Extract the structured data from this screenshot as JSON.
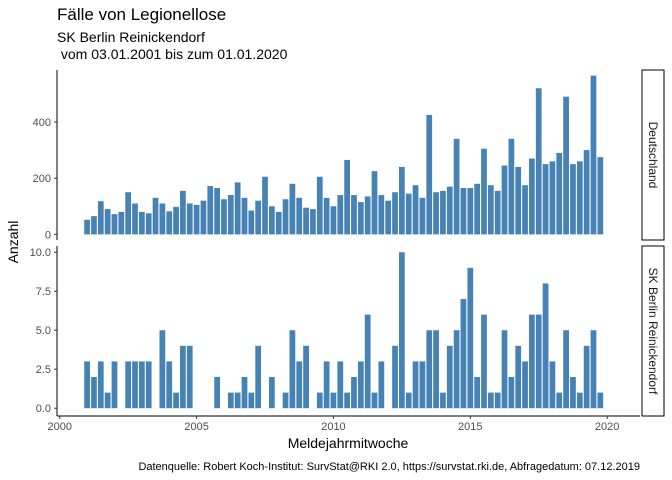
{
  "chart_data": {
    "type": "bar",
    "title": "Fälle von Legionellose",
    "subtitle_line1": "SK Berlin Reinickendorf",
    "subtitle_line2": " vom 03.01.2001 bis zum 01.01.2020",
    "xlabel": "Meldejahrmitwoche",
    "ylabel": "Anzahl",
    "caption": "Datenquelle: Robert Koch-Institut: SurvStat@RKI 2.0, https://survstat.rki.de, Abfragedatum: 07.12.2019",
    "x_ticks": [
      "2000",
      "2005",
      "2010",
      "2015",
      "2020"
    ],
    "xlim": [
      1999.9,
      2021.2
    ],
    "bar_color": "#4682b4",
    "grid": false,
    "bar_width_years": 0.21,
    "panels": [
      {
        "strip": "Deutschland",
        "ylim": [
          -20,
          585
        ],
        "y_ticks": [
          "0",
          "200",
          "400"
        ],
        "x": [
          2001.0,
          2001.25,
          2001.5,
          2001.75,
          2002.0,
          2002.25,
          2002.5,
          2002.75,
          2003.0,
          2003.25,
          2003.5,
          2003.75,
          2004.0,
          2004.25,
          2004.5,
          2004.75,
          2005.0,
          2005.25,
          2005.5,
          2005.75,
          2006.0,
          2006.25,
          2006.5,
          2006.75,
          2007.0,
          2007.25,
          2007.5,
          2007.75,
          2008.0,
          2008.25,
          2008.5,
          2008.75,
          2009.0,
          2009.25,
          2009.5,
          2009.75,
          2010.0,
          2010.25,
          2010.5,
          2010.75,
          2011.0,
          2011.25,
          2011.5,
          2011.75,
          2012.0,
          2012.25,
          2012.5,
          2012.75,
          2013.0,
          2013.25,
          2013.5,
          2013.75,
          2014.0,
          2014.25,
          2014.5,
          2014.75,
          2015.0,
          2015.25,
          2015.5,
          2015.75,
          2016.0,
          2016.25,
          2016.5,
          2016.75,
          2017.0,
          2017.25,
          2017.5,
          2017.75,
          2018.0,
          2018.25,
          2018.5,
          2018.75,
          2019.0,
          2019.25,
          2019.5,
          2019.75
        ],
        "values": [
          52,
          65,
          118,
          90,
          72,
          80,
          150,
          110,
          80,
          75,
          130,
          110,
          82,
          98,
          155,
          110,
          105,
          120,
          172,
          165,
          125,
          140,
          185,
          130,
          85,
          120,
          205,
          100,
          80,
          125,
          180,
          130,
          95,
          90,
          205,
          130,
          100,
          140,
          265,
          140,
          115,
          135,
          225,
          140,
          120,
          150,
          240,
          145,
          175,
          130,
          425,
          150,
          155,
          170,
          340,
          165,
          165,
          180,
          305,
          175,
          155,
          245,
          340,
          240,
          175,
          270,
          520,
          250,
          260,
          290,
          490,
          250,
          260,
          300,
          565,
          275
        ]
      },
      {
        "strip": "SK Berlin Reinickendorf",
        "ylim": [
          -0.5,
          10.4
        ],
        "y_ticks": [
          "0.0",
          "2.5",
          "5.0",
          "7.5",
          "10.0"
        ],
        "x": [
          2001.0,
          2001.25,
          2001.5,
          2001.75,
          2002.0,
          2002.25,
          2002.5,
          2002.75,
          2003.0,
          2003.25,
          2003.5,
          2003.75,
          2004.0,
          2004.25,
          2004.5,
          2004.75,
          2005.0,
          2005.25,
          2005.5,
          2005.75,
          2006.0,
          2006.25,
          2006.5,
          2006.75,
          2007.0,
          2007.25,
          2007.5,
          2007.75,
          2008.0,
          2008.25,
          2008.5,
          2008.75,
          2009.0,
          2009.25,
          2009.5,
          2009.75,
          2010.0,
          2010.25,
          2010.5,
          2010.75,
          2011.0,
          2011.25,
          2011.5,
          2011.75,
          2012.0,
          2012.25,
          2012.5,
          2012.75,
          2013.0,
          2013.25,
          2013.5,
          2013.75,
          2014.0,
          2014.25,
          2014.5,
          2014.75,
          2015.0,
          2015.25,
          2015.5,
          2015.75,
          2016.0,
          2016.25,
          2016.5,
          2016.75,
          2017.0,
          2017.25,
          2017.5,
          2017.75,
          2018.0,
          2018.25,
          2018.5,
          2018.75,
          2019.0,
          2019.25,
          2019.5,
          2019.75
        ],
        "values": [
          3,
          2,
          3,
          1,
          3,
          0,
          3,
          3,
          3,
          3,
          0,
          5,
          3,
          1,
          4,
          4,
          0,
          0,
          0,
          2,
          0,
          1,
          1,
          2,
          1,
          4,
          0,
          2,
          0,
          1,
          5,
          3,
          4,
          0,
          1,
          3,
          1,
          3,
          1,
          2,
          3,
          6,
          1,
          3,
          0,
          4,
          10,
          1,
          3,
          3,
          5,
          5,
          1,
          4,
          5,
          7,
          9,
          2,
          6,
          1,
          1,
          5,
          2,
          4,
          3,
          6,
          6,
          8,
          3,
          1,
          5,
          2,
          1,
          4,
          5,
          1
        ]
      }
    ]
  }
}
